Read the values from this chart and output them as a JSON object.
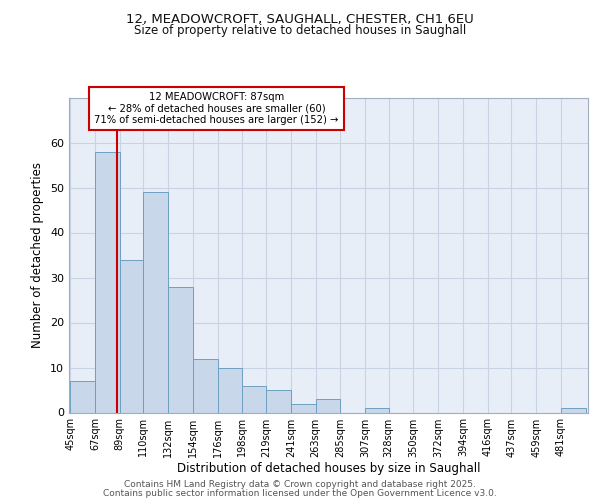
{
  "title1": "12, MEADOWCROFT, SAUGHALL, CHESTER, CH1 6EU",
  "title2": "Size of property relative to detached houses in Saughall",
  "xlabel": "Distribution of detached houses by size in Saughall",
  "ylabel": "Number of detached properties",
  "categories": [
    "45sqm",
    "67sqm",
    "89sqm",
    "110sqm",
    "132sqm",
    "154sqm",
    "176sqm",
    "198sqm",
    "219sqm",
    "241sqm",
    "263sqm",
    "285sqm",
    "307sqm",
    "328sqm",
    "350sqm",
    "372sqm",
    "394sqm",
    "416sqm",
    "437sqm",
    "459sqm",
    "481sqm"
  ],
  "values": [
    7,
    58,
    34,
    49,
    28,
    12,
    10,
    6,
    5,
    2,
    3,
    0,
    1,
    0,
    0,
    0,
    0,
    0,
    0,
    0,
    1
  ],
  "bar_color": "#c8d8ea",
  "bar_edge_color": "#6fa0c0",
  "bar_edge_width": 0.7,
  "red_line_x": 87,
  "annotation_line1": "12 MEADOWCROFT: 87sqm",
  "annotation_line2": "← 28% of detached houses are smaller (60)",
  "annotation_line3": "71% of semi-detached houses are larger (152) →",
  "annotation_box_color": "#ffffff",
  "annotation_box_edge_color": "#cc0000",
  "ylim": [
    0,
    70
  ],
  "yticks": [
    0,
    10,
    20,
    30,
    40,
    50,
    60
  ],
  "grid_color": "#c8d4e4",
  "background_color": "#e8eef8",
  "footer1": "Contains HM Land Registry data © Crown copyright and database right 2025.",
  "footer2": "Contains public sector information licensed under the Open Government Licence v3.0.",
  "bin_width": 22
}
